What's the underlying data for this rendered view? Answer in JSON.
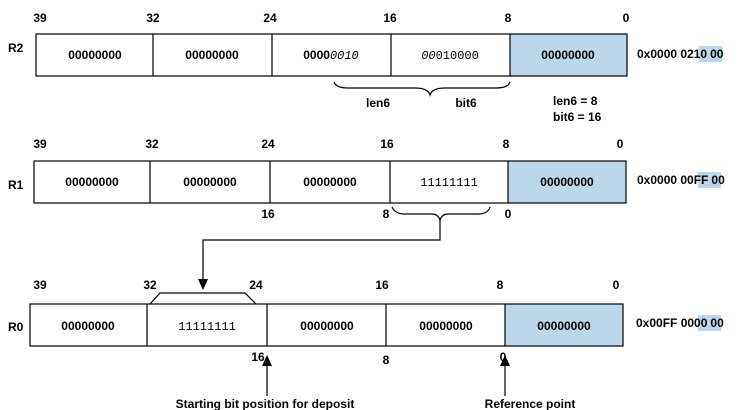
{
  "registers": [
    {
      "name": "R2",
      "bit_labels": [
        "39",
        "32",
        "24",
        "16",
        "8",
        "0"
      ],
      "fields": [
        {
          "text": "00000000",
          "mono": false
        },
        {
          "text": "00000000",
          "mono": false
        },
        {
          "parts": [
            {
              "text": "0000",
              "italic": false
            },
            {
              "text": "0010",
              "italic": true
            }
          ]
        },
        {
          "parts": [
            {
              "text": "00",
              "italic": true
            },
            {
              "text": "010000",
              "italic": false
            }
          ]
        },
        {
          "text": "00000000",
          "mono": false,
          "highlight": true
        }
      ],
      "hex": {
        "main": "0x0000 0210",
        "tail": "00"
      },
      "braces": [
        "len6",
        "bit6"
      ],
      "notes": [
        "len6 = 8",
        "bit6 = 16"
      ]
    },
    {
      "name": "R1",
      "bit_labels": [
        "39",
        "32",
        "24",
        "16",
        "8",
        "0"
      ],
      "below_labels": [
        "16",
        "8",
        "0"
      ],
      "fields": [
        {
          "text": "00000000",
          "mono": false
        },
        {
          "text": "00000000",
          "mono": false
        },
        {
          "text": "00000000",
          "mono": false
        },
        {
          "text": "11111111",
          "mono": true
        },
        {
          "text": "00000000",
          "mono": false,
          "highlight": true
        }
      ],
      "hex": {
        "main": "0x0000 00FF",
        "tail": "00"
      }
    },
    {
      "name": "R0",
      "bit_labels": [
        "39",
        "32",
        "24",
        "16",
        "8",
        "0"
      ],
      "below_labels": [
        "16",
        "8",
        "0"
      ],
      "fields": [
        {
          "text": "00000000",
          "mono": false
        },
        {
          "text": "11111111",
          "mono": true
        },
        {
          "text": "00000000",
          "mono": false
        },
        {
          "text": "00000000",
          "mono": false
        },
        {
          "text": "00000000",
          "mono": false,
          "highlight": true
        }
      ],
      "hex": {
        "main": "0x00FF 0000",
        "tail": "00"
      }
    }
  ],
  "captions": {
    "deposit": "Starting bit position for deposit",
    "reference": "Reference point"
  },
  "colors": {
    "highlight": "#bcd6ea",
    "hex_tail_bg": "#bcd6ea",
    "line": "#000000"
  }
}
